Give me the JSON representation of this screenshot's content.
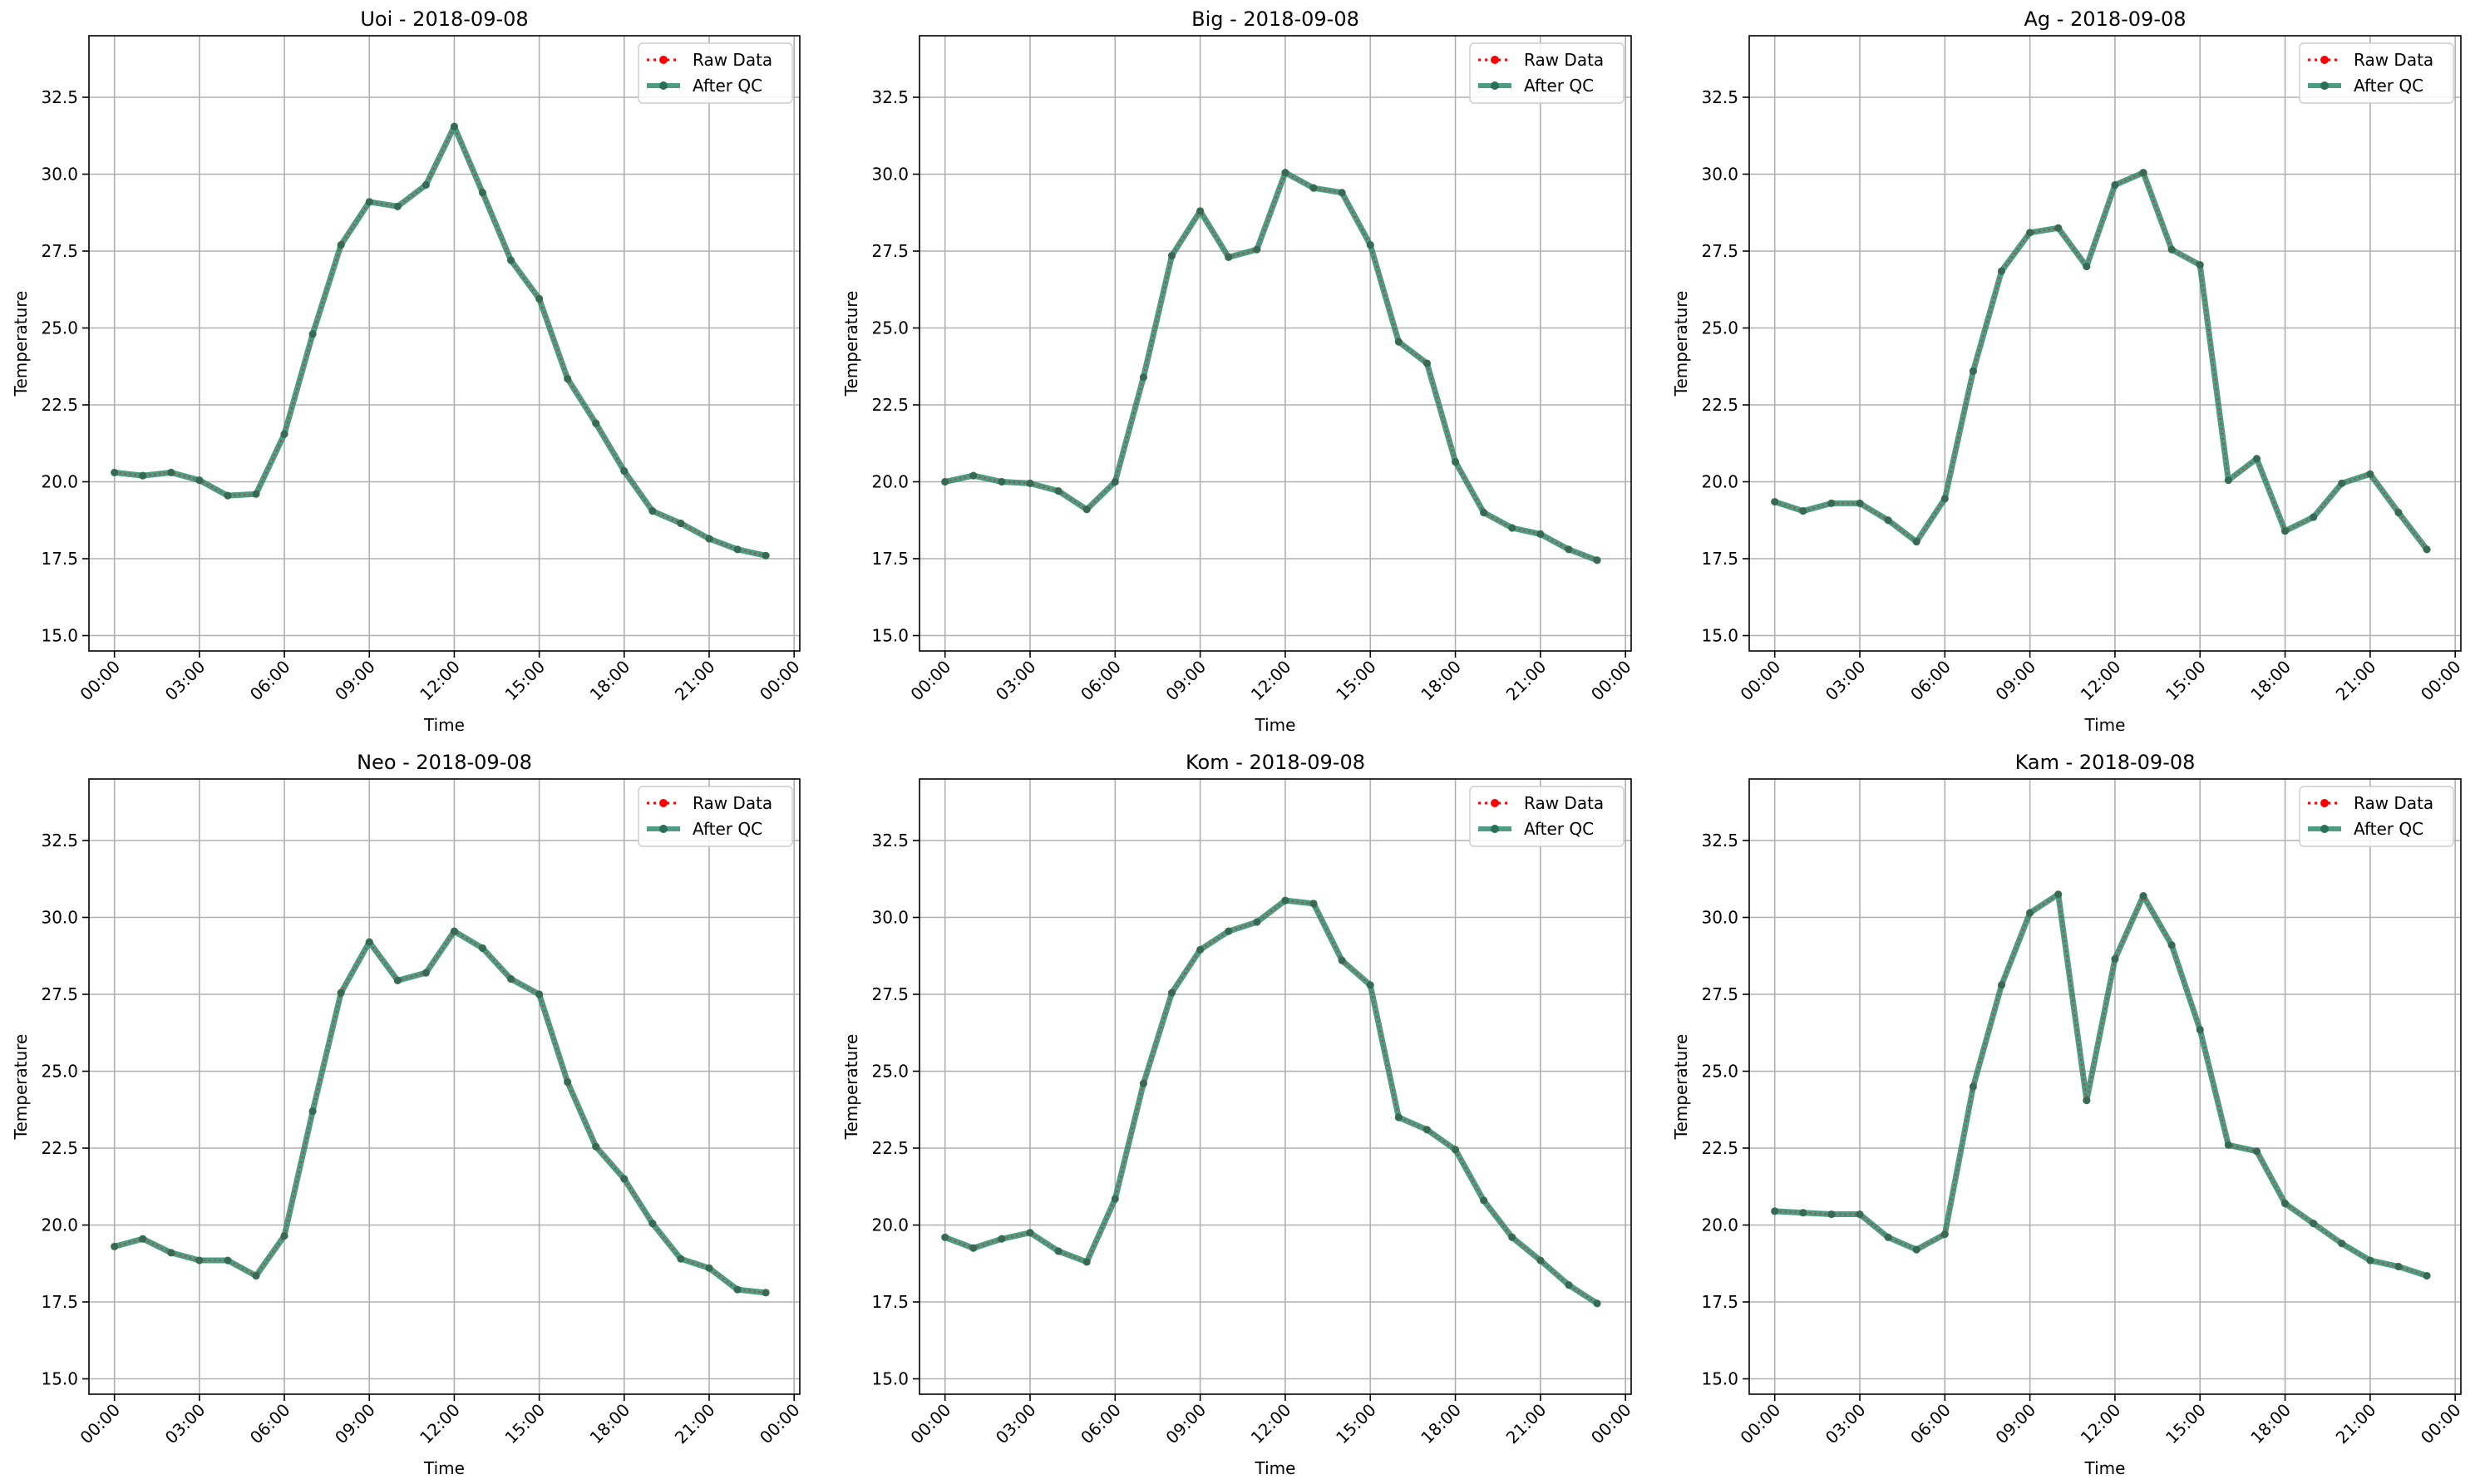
{
  "figure": {
    "ylabel": "Temperature",
    "xlabel": "Time",
    "yticks": [
      15.0,
      17.5,
      20.0,
      22.5,
      25.0,
      27.5,
      30.0,
      32.5
    ],
    "ytick_labels": [
      "15.0",
      "17.5",
      "20.0",
      "22.5",
      "25.0",
      "27.5",
      "30.0",
      "32.5"
    ],
    "xtick_hours": [
      0,
      3,
      6,
      9,
      12,
      15,
      18,
      21,
      24
    ],
    "xtick_labels": [
      "00:00",
      "03:00",
      "06:00",
      "09:00",
      "12:00",
      "15:00",
      "18:00",
      "21:00",
      "00:00"
    ],
    "legend": {
      "raw": "Raw Data",
      "qc": "After QC",
      "placement": "upper right"
    },
    "colors": {
      "raw": "#ff0000",
      "qc": "#2e8b6f",
      "grid": "#b0b0b0"
    }
  },
  "chart_data": [
    {
      "type": "line",
      "title": "Uoi - 2018-09-08",
      "xlabel": "Time",
      "ylabel": "Temperature",
      "ylim": [
        14.5,
        34.5
      ],
      "xlim_hours": [
        -0.9,
        24.2
      ],
      "x": [
        0,
        1,
        2,
        3,
        4,
        5,
        6,
        7,
        8,
        9,
        10,
        11,
        12,
        13,
        14,
        15,
        16,
        17,
        18,
        19,
        20,
        21,
        22,
        23
      ],
      "series": [
        {
          "name": "Raw Data",
          "values": [
            20.3,
            20.2,
            20.3,
            20.05,
            19.55,
            19.6,
            21.55,
            24.8,
            27.7,
            29.1,
            28.95,
            29.65,
            31.55,
            29.4,
            27.2,
            25.95,
            23.35,
            21.9,
            20.35,
            19.05,
            18.65,
            18.15,
            17.8,
            17.6
          ]
        },
        {
          "name": "After QC",
          "values": [
            20.3,
            20.2,
            20.3,
            20.05,
            19.55,
            19.6,
            21.55,
            24.8,
            27.7,
            29.1,
            28.95,
            29.65,
            31.55,
            29.4,
            27.2,
            25.95,
            23.35,
            21.9,
            20.35,
            19.05,
            18.65,
            18.15,
            17.8,
            17.6
          ]
        }
      ]
    },
    {
      "type": "line",
      "title": "Big - 2018-09-08",
      "xlabel": "Time",
      "ylabel": "Temperature",
      "ylim": [
        14.5,
        34.5
      ],
      "xlim_hours": [
        -0.9,
        24.2
      ],
      "x": [
        0,
        1,
        2,
        3,
        4,
        5,
        6,
        7,
        8,
        9,
        10,
        11,
        12,
        13,
        14,
        15,
        16,
        17,
        18,
        19,
        20,
        21,
        22,
        23
      ],
      "series": [
        {
          "name": "Raw Data",
          "values": [
            20.0,
            20.2,
            20.0,
            19.95,
            19.7,
            19.1,
            20.0,
            23.4,
            27.35,
            28.8,
            27.3,
            27.55,
            30.05,
            29.55,
            29.4,
            27.7,
            24.55,
            23.85,
            20.65,
            19.0,
            18.5,
            18.3,
            17.8,
            17.45
          ]
        },
        {
          "name": "After QC",
          "values": [
            20.0,
            20.2,
            20.0,
            19.95,
            19.7,
            19.1,
            20.0,
            23.4,
            27.35,
            28.8,
            27.3,
            27.55,
            30.05,
            29.55,
            29.4,
            27.7,
            24.55,
            23.85,
            20.65,
            19.0,
            18.5,
            18.3,
            17.8,
            17.45
          ]
        }
      ]
    },
    {
      "type": "line",
      "title": "Ag - 2018-09-08",
      "xlabel": "Time",
      "ylabel": "Temperature",
      "ylim": [
        14.5,
        34.5
      ],
      "xlim_hours": [
        -0.9,
        24.2
      ],
      "x": [
        0,
        1,
        2,
        3,
        4,
        5,
        6,
        7,
        8,
        9,
        10,
        11,
        12,
        13,
        14,
        15,
        16,
        17,
        18,
        19,
        20,
        21,
        22,
        23
      ],
      "series": [
        {
          "name": "Raw Data",
          "values": [
            19.35,
            19.05,
            19.3,
            19.3,
            18.75,
            18.05,
            19.45,
            23.6,
            26.85,
            28.1,
            28.25,
            27.0,
            29.65,
            30.05,
            27.55,
            27.05,
            20.05,
            20.75,
            18.4,
            18.85,
            19.95,
            20.25,
            19.0,
            17.8
          ]
        },
        {
          "name": "After QC",
          "values": [
            19.35,
            19.05,
            19.3,
            19.3,
            18.75,
            18.05,
            19.45,
            23.6,
            26.85,
            28.1,
            28.25,
            27.0,
            29.65,
            30.05,
            27.55,
            27.05,
            20.05,
            20.75,
            18.4,
            18.85,
            19.95,
            20.25,
            19.0,
            17.8
          ]
        }
      ]
    },
    {
      "type": "line",
      "title": "Neo - 2018-09-08",
      "xlabel": "Time",
      "ylabel": "Temperature",
      "ylim": [
        14.5,
        34.5
      ],
      "xlim_hours": [
        -0.9,
        24.2
      ],
      "x": [
        0,
        1,
        2,
        3,
        4,
        5,
        6,
        7,
        8,
        9,
        10,
        11,
        12,
        13,
        14,
        15,
        16,
        17,
        18,
        19,
        20,
        21,
        22,
        23
      ],
      "series": [
        {
          "name": "Raw Data",
          "values": [
            19.3,
            19.55,
            19.1,
            18.85,
            18.85,
            18.35,
            19.65,
            23.7,
            27.55,
            29.2,
            27.95,
            28.2,
            29.55,
            29.0,
            28.0,
            27.5,
            24.65,
            22.55,
            21.5,
            20.05,
            18.9,
            18.6,
            17.9,
            17.8
          ]
        },
        {
          "name": "After QC",
          "values": [
            19.3,
            19.55,
            19.1,
            18.85,
            18.85,
            18.35,
            19.65,
            23.7,
            27.55,
            29.2,
            27.95,
            28.2,
            29.55,
            29.0,
            28.0,
            27.5,
            24.65,
            22.55,
            21.5,
            20.05,
            18.9,
            18.6,
            17.9,
            17.8
          ]
        }
      ]
    },
    {
      "type": "line",
      "title": "Kom - 2018-09-08",
      "xlabel": "Time",
      "ylabel": "Temperature",
      "ylim": [
        14.5,
        34.5
      ],
      "xlim_hours": [
        -0.9,
        24.2
      ],
      "x": [
        0,
        1,
        2,
        3,
        4,
        5,
        6,
        7,
        8,
        9,
        10,
        11,
        12,
        13,
        14,
        15,
        16,
        17,
        18,
        19,
        20,
        21,
        22,
        23
      ],
      "series": [
        {
          "name": "Raw Data",
          "values": [
            19.6,
            19.25,
            19.55,
            19.75,
            19.15,
            18.8,
            20.85,
            24.6,
            27.55,
            28.95,
            29.55,
            29.85,
            30.55,
            30.45,
            28.6,
            27.8,
            23.5,
            23.1,
            22.45,
            20.8,
            19.6,
            18.85,
            18.05,
            17.45
          ]
        },
        {
          "name": "After QC",
          "values": [
            19.6,
            19.25,
            19.55,
            19.75,
            19.15,
            18.8,
            20.85,
            24.6,
            27.55,
            28.95,
            29.55,
            29.85,
            30.55,
            30.45,
            28.6,
            27.8,
            23.5,
            23.1,
            22.45,
            20.8,
            19.6,
            18.85,
            18.05,
            17.45
          ]
        }
      ]
    },
    {
      "type": "line",
      "title": "Kam - 2018-09-08",
      "xlabel": "Time",
      "ylabel": "Temperature",
      "ylim": [
        14.5,
        34.5
      ],
      "xlim_hours": [
        -0.9,
        24.2
      ],
      "x": [
        0,
        1,
        2,
        3,
        4,
        5,
        6,
        7,
        8,
        9,
        10,
        11,
        12,
        13,
        14,
        15,
        16,
        17,
        18,
        19,
        20,
        21,
        22,
        23
      ],
      "series": [
        {
          "name": "Raw Data",
          "values": [
            20.45,
            20.4,
            20.35,
            20.35,
            19.6,
            19.2,
            19.7,
            24.5,
            27.8,
            30.15,
            30.75,
            24.05,
            28.65,
            30.7,
            29.1,
            26.35,
            22.6,
            22.4,
            20.7,
            20.05,
            19.4,
            18.85,
            18.65,
            18.35
          ]
        },
        {
          "name": "After QC",
          "values": [
            20.45,
            20.4,
            20.35,
            20.35,
            19.6,
            19.2,
            19.7,
            24.5,
            27.8,
            30.15,
            30.75,
            24.05,
            28.65,
            30.7,
            29.1,
            26.35,
            22.6,
            22.4,
            20.7,
            20.05,
            19.4,
            18.85,
            18.65,
            18.35
          ]
        }
      ]
    }
  ]
}
